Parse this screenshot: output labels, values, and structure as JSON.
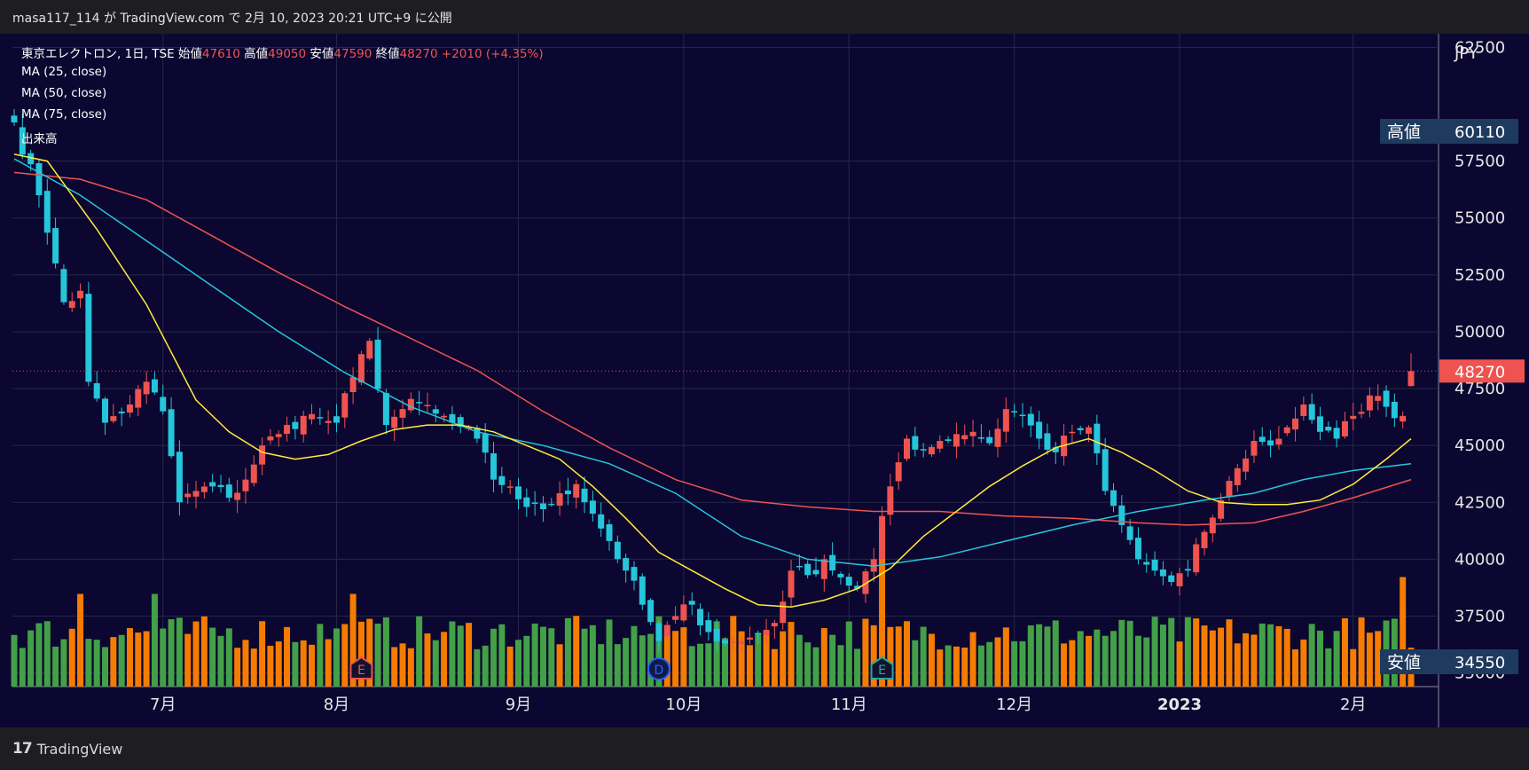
{
  "header": {
    "publish_line": "masa117_114 が TradingView.com で 2月 10, 2023 20:21 UTC+9 に公開"
  },
  "footer": {
    "brand": "TradingView",
    "brand_mark": "17"
  },
  "legend": {
    "symbol": "東京エレクトロン, 1日, TSE",
    "open_label": "始値",
    "open": "47610",
    "high_label": "高値",
    "high": "49050",
    "low_label": "安値",
    "low": "47590",
    "close_label": "終値",
    "close": "48270",
    "change": "+2010 (+4.35%)",
    "ma1": "MA (25, close)",
    "ma2": "MA (50, close)",
    "ma3": "MA (75, close)",
    "volume": "出来高"
  },
  "colors": {
    "background": "#0b0730",
    "up": "#ef5350",
    "down": "#26c6da",
    "vol_up": "#f57c00",
    "vol_down": "#43a047",
    "ma25": "#ffeb3b",
    "ma50": "#26c6da",
    "ma75": "#ef5350",
    "label_bg": "#1e3a5f"
  },
  "chart_data": {
    "type": "candlestick",
    "currency": "JPY",
    "y_ticks": [
      62500,
      57500,
      55000,
      52500,
      50000,
      47500,
      45000,
      42500,
      40000,
      37500,
      35000
    ],
    "ylim": [
      34400,
      63100
    ],
    "x_labels": [
      {
        "label": "7月",
        "index": 18
      },
      {
        "label": "8月",
        "index": 39
      },
      {
        "label": "9月",
        "index": 61
      },
      {
        "label": "10月",
        "index": 81
      },
      {
        "label": "11月",
        "index": 101
      },
      {
        "label": "12月",
        "index": 121
      },
      {
        "label": "2023",
        "index": 141
      },
      {
        "label": "2月",
        "index": 162
      }
    ],
    "current_price": 48270,
    "high_label": {
      "label": "高値",
      "value": 60110
    },
    "low_label": {
      "label": "安値",
      "value": 34550
    },
    "events": [
      {
        "index": 42,
        "letter": "E",
        "color": "#ef5350"
      },
      {
        "index": 78,
        "letter": "D",
        "color": "#2962ff"
      },
      {
        "index": 105,
        "letter": "E",
        "color": "#26a69a"
      }
    ],
    "anchors": [
      [
        0,
        59200
      ],
      [
        3,
        56000
      ],
      [
        5,
        53000
      ],
      [
        6,
        51300
      ],
      [
        8,
        51800
      ],
      [
        9,
        47800
      ],
      [
        11,
        46000
      ],
      [
        14,
        46800
      ],
      [
        16,
        47800
      ],
      [
        18,
        46500
      ],
      [
        20,
        42500
      ],
      [
        22,
        43000
      ],
      [
        24,
        43200
      ],
      [
        26,
        42700
      ],
      [
        28,
        43500
      ],
      [
        30,
        45000
      ],
      [
        32,
        45500
      ],
      [
        35,
        46300
      ],
      [
        37,
        46200
      ],
      [
        39,
        46000
      ],
      [
        41,
        48000
      ],
      [
        43,
        49600
      ],
      [
        45,
        45900
      ],
      [
        47,
        46600
      ],
      [
        49,
        46900
      ],
      [
        51,
        46400
      ],
      [
        53,
        46000
      ],
      [
        56,
        45300
      ],
      [
        58,
        43500
      ],
      [
        60,
        43200
      ],
      [
        62,
        42300
      ],
      [
        64,
        42200
      ],
      [
        66,
        42900
      ],
      [
        68,
        43300
      ],
      [
        70,
        42000
      ],
      [
        72,
        40800
      ],
      [
        74,
        39500
      ],
      [
        76,
        38000
      ],
      [
        78,
        36400
      ],
      [
        80,
        37500
      ],
      [
        82,
        38000
      ],
      [
        84,
        36800
      ],
      [
        86,
        36300
      ],
      [
        88,
        36400
      ],
      [
        90,
        36700
      ],
      [
        92,
        37200
      ],
      [
        94,
        39500
      ],
      [
        96,
        39300
      ],
      [
        98,
        40000
      ],
      [
        100,
        39200
      ],
      [
        102,
        38700
      ],
      [
        104,
        40000
      ],
      [
        106,
        43200
      ],
      [
        108,
        45300
      ],
      [
        110,
        44800
      ],
      [
        112,
        45200
      ],
      [
        114,
        45500
      ],
      [
        116,
        45600
      ],
      [
        118,
        45100
      ],
      [
        120,
        46600
      ],
      [
        122,
        46300
      ],
      [
        124,
        45300
      ],
      [
        126,
        44700
      ],
      [
        128,
        45600
      ],
      [
        130,
        45800
      ],
      [
        132,
        43000
      ],
      [
        134,
        41500
      ],
      [
        136,
        40000
      ],
      [
        138,
        39500
      ],
      [
        140,
        39000
      ],
      [
        142,
        39500
      ],
      [
        144,
        41200
      ],
      [
        146,
        42600
      ],
      [
        148,
        44000
      ],
      [
        150,
        45200
      ],
      [
        152,
        45000
      ],
      [
        154,
        45800
      ],
      [
        156,
        46800
      ],
      [
        158,
        45600
      ],
      [
        160,
        45300
      ],
      [
        162,
        46300
      ],
      [
        164,
        47200
      ],
      [
        166,
        46700
      ],
      [
        168,
        46300
      ],
      [
        169,
        48270
      ]
    ],
    "ma_series": {
      "ma25": {
        "name": "MA (25, close)",
        "points": [
          [
            0,
            57800
          ],
          [
            4,
            57500
          ],
          [
            10,
            54500
          ],
          [
            16,
            51200
          ],
          [
            22,
            47000
          ],
          [
            26,
            45600
          ],
          [
            30,
            44700
          ],
          [
            34,
            44400
          ],
          [
            38,
            44600
          ],
          [
            42,
            45200
          ],
          [
            46,
            45700
          ],
          [
            50,
            45900
          ],
          [
            54,
            45900
          ],
          [
            58,
            45600
          ],
          [
            62,
            45000
          ],
          [
            66,
            44400
          ],
          [
            70,
            43200
          ],
          [
            74,
            41800
          ],
          [
            78,
            40300
          ],
          [
            82,
            39500
          ],
          [
            86,
            38700
          ],
          [
            90,
            38000
          ],
          [
            94,
            37900
          ],
          [
            98,
            38200
          ],
          [
            102,
            38700
          ],
          [
            106,
            39600
          ],
          [
            110,
            41000
          ],
          [
            114,
            42100
          ],
          [
            118,
            43200
          ],
          [
            122,
            44100
          ],
          [
            126,
            44900
          ],
          [
            130,
            45300
          ],
          [
            134,
            44700
          ],
          [
            138,
            43900
          ],
          [
            142,
            43000
          ],
          [
            146,
            42500
          ],
          [
            150,
            42400
          ],
          [
            154,
            42400
          ],
          [
            158,
            42600
          ],
          [
            162,
            43300
          ],
          [
            166,
            44400
          ],
          [
            169,
            45300
          ]
        ]
      },
      "ma50": {
        "name": "MA (50, close)",
        "points": [
          [
            0,
            57600
          ],
          [
            8,
            56000
          ],
          [
            16,
            54000
          ],
          [
            24,
            52000
          ],
          [
            32,
            50000
          ],
          [
            40,
            48200
          ],
          [
            48,
            46700
          ],
          [
            56,
            45600
          ],
          [
            64,
            45000
          ],
          [
            72,
            44200
          ],
          [
            80,
            42900
          ],
          [
            88,
            41000
          ],
          [
            96,
            40000
          ],
          [
            104,
            39700
          ],
          [
            112,
            40100
          ],
          [
            120,
            40800
          ],
          [
            128,
            41500
          ],
          [
            136,
            42100
          ],
          [
            144,
            42600
          ],
          [
            150,
            42900
          ],
          [
            156,
            43500
          ],
          [
            162,
            43900
          ],
          [
            169,
            44200
          ]
        ]
      },
      "ma75": {
        "name": "MA (75, close)",
        "points": [
          [
            0,
            57000
          ],
          [
            8,
            56700
          ],
          [
            16,
            55800
          ],
          [
            24,
            54200
          ],
          [
            32,
            52600
          ],
          [
            40,
            51100
          ],
          [
            48,
            49700
          ],
          [
            56,
            48300
          ],
          [
            64,
            46500
          ],
          [
            72,
            44900
          ],
          [
            80,
            43500
          ],
          [
            88,
            42600
          ],
          [
            96,
            42300
          ],
          [
            104,
            42100
          ],
          [
            112,
            42100
          ],
          [
            120,
            41900
          ],
          [
            128,
            41800
          ],
          [
            136,
            41600
          ],
          [
            142,
            41500
          ],
          [
            150,
            41600
          ],
          [
            156,
            42100
          ],
          [
            162,
            42700
          ],
          [
            169,
            43500
          ]
        ]
      }
    }
  }
}
